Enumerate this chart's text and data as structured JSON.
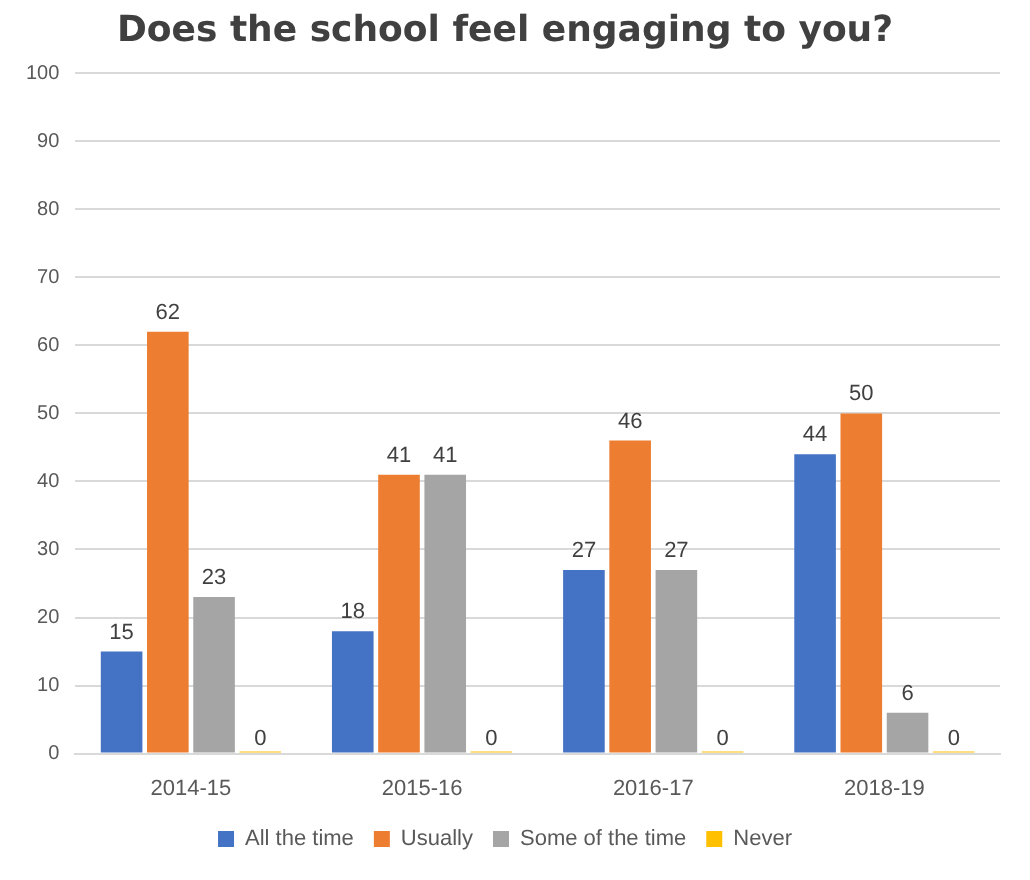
{
  "chart_data": {
    "type": "bar",
    "title": "Does the school feel engaging to you?",
    "categories": [
      "2014-15",
      "2015-16",
      "2016-17",
      "2018-19"
    ],
    "series": [
      {
        "name": "All the time",
        "color": "#4472c4",
        "values": [
          15,
          18,
          27,
          44
        ]
      },
      {
        "name": "Usually",
        "color": "#ed7d31",
        "values": [
          62,
          41,
          46,
          50
        ]
      },
      {
        "name": "Some of the time",
        "color": "#a5a5a5",
        "values": [
          23,
          41,
          27,
          6
        ]
      },
      {
        "name": "Never",
        "color": "#ffc000",
        "values": [
          0,
          0,
          0,
          0
        ]
      }
    ],
    "ylim": [
      0,
      100
    ],
    "yticks": [
      0,
      10,
      20,
      30,
      40,
      50,
      60,
      70,
      80,
      90,
      100
    ],
    "grid": "y",
    "legend": "bottom",
    "data_labels": true
  }
}
